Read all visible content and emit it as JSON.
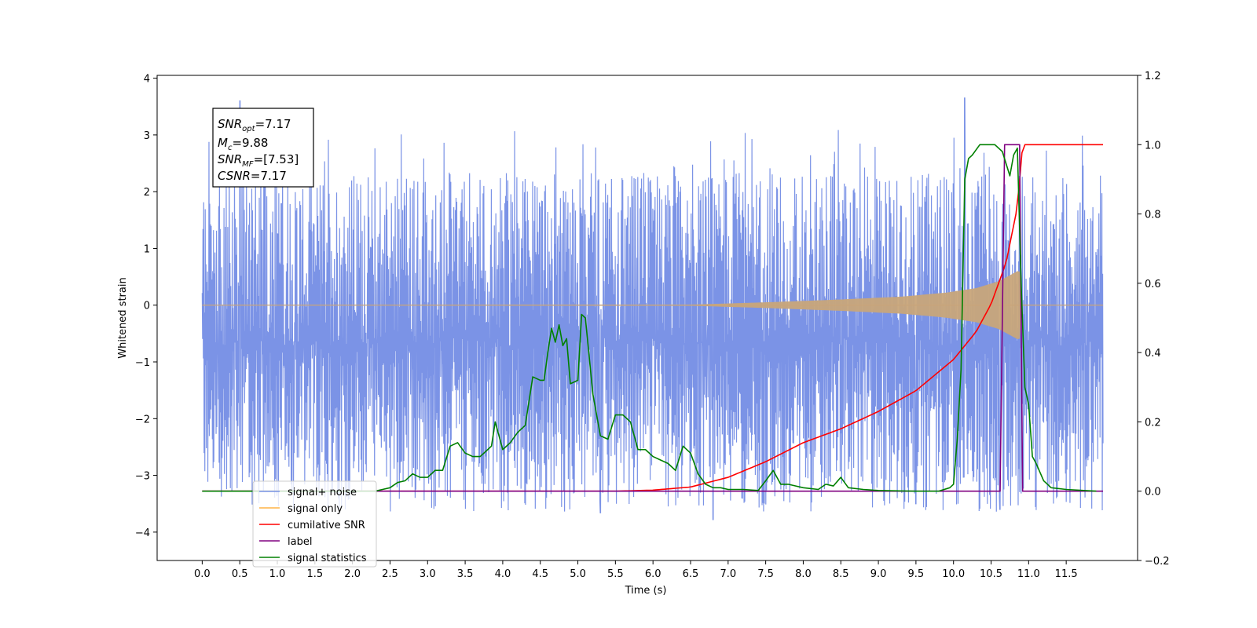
{
  "chart_data": {
    "type": "line",
    "xlabel": "Time (s)",
    "ylabel_left": "Whitened strain",
    "ylabel_right": "",
    "xlim": [
      -0.6,
      12.45
    ],
    "ylim_left": [
      -4.5,
      4.05
    ],
    "ylim_right": [
      -0.2,
      1.2
    ],
    "x_ticks": [
      0.0,
      0.5,
      1.0,
      1.5,
      2.0,
      2.5,
      3.0,
      3.5,
      4.0,
      4.5,
      5.0,
      5.5,
      6.0,
      6.5,
      7.0,
      7.5,
      8.0,
      8.5,
      9.0,
      9.5,
      10.0,
      10.5,
      11.0,
      11.5
    ],
    "x_tick_labels": [
      "0.0",
      "0.5",
      "1.0",
      "1.5",
      "2.0",
      "2.5",
      "3.0",
      "3.5",
      "4.0",
      "4.5",
      "5.0",
      "5.5",
      "6.0",
      "6.5",
      "7.0",
      "7.5",
      "8.0",
      "8.5",
      "9.0",
      "9.5",
      "10.0",
      "10.5",
      "11.0",
      "11.5"
    ],
    "y_left_ticks": [
      4,
      3,
      2,
      1,
      0,
      -1,
      -2,
      -3,
      -4
    ],
    "y_left_tick_labels": [
      "4",
      "3",
      "2",
      "1",
      "0",
      "−1",
      "−2",
      "−3",
      "−4"
    ],
    "y_right_ticks": [
      1.2,
      1.0,
      0.8,
      0.6,
      0.4,
      0.2,
      0.0,
      -0.2
    ],
    "y_right_tick_labels": [
      "1.2",
      "1.0",
      "0.8",
      "0.6",
      "0.4",
      "0.2",
      "0.0",
      "−0.2"
    ],
    "grid": false,
    "legend_location": "lower-left",
    "annotation": {
      "lines": [
        {
          "main": "SNR",
          "sub": "opt",
          "rest": "=7.17"
        },
        {
          "main": "M",
          "sub": "c",
          "rest": "=9.88"
        },
        {
          "main": "SNR",
          "sub": "MF",
          "rest": "=[7.53]"
        },
        {
          "main": "CSNR",
          "sub": "",
          "rest": "=7.17"
        }
      ]
    },
    "series": [
      {
        "name": "signal+ noise",
        "axis": "left",
        "color": "#7b93e6",
        "x_range": [
          0.0,
          11.99
        ],
        "typical_range": [
          -1.5,
          1.9
        ],
        "extreme_spikes": [
          [
            0.5,
            3.6
          ],
          [
            10.15,
            3.65
          ],
          [
            9.5,
            -3.5
          ],
          [
            6.8,
            -3.78
          ],
          [
            5.3,
            -3.66
          ],
          [
            10.62,
            -3.6
          ]
        ]
      },
      {
        "name": "signal only",
        "axis": "left",
        "color": "#ffb347",
        "x": [
          0.0,
          6.5,
          7.5,
          8.5,
          9.3,
          9.9,
          10.3,
          10.6,
          10.88,
          10.9,
          11.99
        ],
        "envelope": [
          0.0,
          0.01,
          0.05,
          0.1,
          0.15,
          0.22,
          0.3,
          0.42,
          0.62,
          0.0,
          0.0
        ]
      },
      {
        "name": "cumilative SNR",
        "axis": "right",
        "color": "#ff0000",
        "x": [
          0.0,
          5.5,
          6.0,
          6.5,
          7.0,
          7.5,
          8.0,
          8.5,
          9.0,
          9.5,
          10.0,
          10.3,
          10.5,
          10.7,
          10.85,
          10.92,
          11.99
        ],
        "values": [
          0.0,
          0.0,
          0.003,
          0.012,
          0.04,
          0.085,
          0.14,
          0.18,
          0.23,
          0.29,
          0.38,
          0.46,
          0.54,
          0.66,
          0.82,
          1.0,
          1.0
        ]
      },
      {
        "name": "label",
        "axis": "right",
        "color": "#800080",
        "x": [
          0.0,
          10.62,
          10.68,
          10.88,
          10.92,
          11.99
        ],
        "values": [
          0.0,
          0.0,
          1.0,
          1.0,
          0.0,
          0.0
        ]
      },
      {
        "name": "signal statistics",
        "axis": "right",
        "color": "#008000",
        "x": [
          0.0,
          2.3,
          2.4,
          2.5,
          2.6,
          2.7,
          2.8,
          2.9,
          3.0,
          3.1,
          3.2,
          3.3,
          3.4,
          3.5,
          3.6,
          3.7,
          3.8,
          3.85,
          3.9,
          4.0,
          4.1,
          4.2,
          4.3,
          4.4,
          4.5,
          4.55,
          4.6,
          4.65,
          4.7,
          4.75,
          4.8,
          4.85,
          4.9,
          5.0,
          5.05,
          5.1,
          5.2,
          5.3,
          5.4,
          5.5,
          5.6,
          5.7,
          5.8,
          5.9,
          6.0,
          6.1,
          6.2,
          6.3,
          6.4,
          6.5,
          6.6,
          6.7,
          6.8,
          6.9,
          7.0,
          7.2,
          7.4,
          7.5,
          7.6,
          7.7,
          7.8,
          8.0,
          8.2,
          8.3,
          8.4,
          8.5,
          8.6,
          8.8,
          9.0,
          9.5,
          9.8,
          9.95,
          10.0,
          10.05,
          10.1,
          10.15,
          10.2,
          10.25,
          10.35,
          10.45,
          10.55,
          10.65,
          10.75,
          10.8,
          10.85,
          10.9,
          10.95,
          11.0,
          11.05,
          11.1,
          11.2,
          11.3,
          11.5,
          11.9
        ],
        "values": [
          0.0,
          0.0,
          0.005,
          0.01,
          0.025,
          0.03,
          0.05,
          0.04,
          0.04,
          0.06,
          0.06,
          0.13,
          0.14,
          0.11,
          0.1,
          0.1,
          0.12,
          0.13,
          0.2,
          0.12,
          0.14,
          0.17,
          0.19,
          0.33,
          0.32,
          0.32,
          0.4,
          0.47,
          0.43,
          0.48,
          0.42,
          0.44,
          0.31,
          0.32,
          0.51,
          0.5,
          0.28,
          0.16,
          0.15,
          0.22,
          0.22,
          0.2,
          0.12,
          0.12,
          0.1,
          0.09,
          0.08,
          0.06,
          0.13,
          0.11,
          0.05,
          0.02,
          0.01,
          0.01,
          0.005,
          0.005,
          0.002,
          0.03,
          0.06,
          0.02,
          0.02,
          0.01,
          0.005,
          0.02,
          0.015,
          0.04,
          0.01,
          0.005,
          0.002,
          0.0,
          0.0,
          0.01,
          0.02,
          0.15,
          0.35,
          0.9,
          0.96,
          0.97,
          1.0,
          1.0,
          1.0,
          0.98,
          0.91,
          0.97,
          0.99,
          0.6,
          0.3,
          0.25,
          0.1,
          0.08,
          0.03,
          0.01,
          0.005,
          0.0
        ]
      }
    ]
  }
}
